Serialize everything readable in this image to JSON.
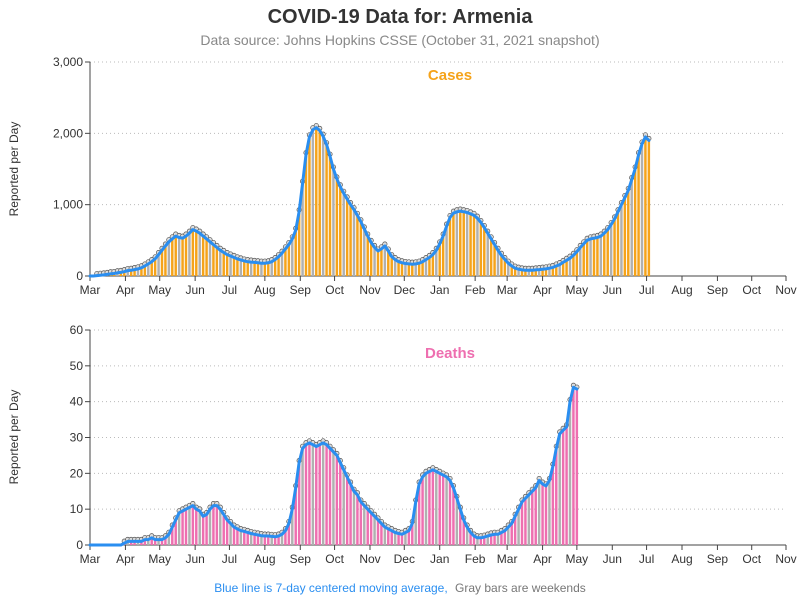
{
  "title": "COVID-19 Data for: Armenia",
  "subtitle": "Data source: Johns Hopkins CSSE (October 31, 2021 snapshot)",
  "footnote": {
    "blue_part": "Blue line is 7-day centered moving average,",
    "gray_part": "Gray bars are weekends"
  },
  "colors": {
    "cases_bar": "#f5a31a",
    "deaths_bar": "#ee6fb0",
    "moving_average": "#2a8ef0",
    "weekend_bar": "#b0b0b0",
    "grid": "#bbbbbb",
    "marker_fill": "#dddddd",
    "marker_stroke": "#555555"
  },
  "chart_data": [
    {
      "type": "bar",
      "title": "Cases",
      "title_color": "#f5a31a",
      "ylabel": "Reported per Day",
      "ylim": [
        0,
        3000
      ],
      "yticks": [
        0,
        1000,
        2000,
        3000
      ],
      "ytick_labels": [
        "0",
        "1,000",
        "2,000",
        "3,000"
      ],
      "xlim": [
        "2020-03-01",
        "2021-10-31"
      ],
      "xtick_labels": [
        "Mar",
        "Apr",
        "May",
        "Jun",
        "Jul",
        "Aug",
        "Sep",
        "Oct",
        "Nov",
        "Dec",
        "Jan",
        "Feb",
        "Mar",
        "Apr",
        "May",
        "Jun",
        "Jul",
        "Aug",
        "Sep",
        "Oct",
        "Nov"
      ],
      "grid": "horizontal dotted",
      "bar_color": "#f5a31a",
      "line_color": "#2a8ef0",
      "series": [
        {
          "name": "Reported per Day",
          "sample_interval_days": 3,
          "start_date": "2020-03-01",
          "values": [
            0,
            0,
            5,
            10,
            15,
            22,
            30,
            35,
            45,
            50,
            60,
            75,
            80,
            90,
            100,
            115,
            140,
            170,
            200,
            240,
            300,
            360,
            420,
            480,
            520,
            560,
            540,
            530,
            560,
            600,
            650,
            630,
            600,
            560,
            520,
            480,
            440,
            400,
            360,
            330,
            300,
            280,
            260,
            240,
            225,
            210,
            200,
            195,
            190,
            185,
            180,
            180,
            185,
            200,
            230,
            270,
            320,
            380,
            440,
            520,
            640,
            900,
            1300,
            1700,
            1950,
            2050,
            2080,
            2040,
            1960,
            1840,
            1680,
            1500,
            1360,
            1250,
            1160,
            1080,
            1000,
            930,
            850,
            760,
            660,
            560,
            470,
            400,
            350,
            380,
            420,
            350,
            270,
            230,
            200,
            185,
            175,
            170,
            165,
            170,
            180,
            200,
            230,
            260,
            300,
            360,
            450,
            560,
            700,
            820,
            880,
            900,
            910,
            900,
            890,
            870,
            850,
            810,
            750,
            680,
            600,
            520,
            440,
            360,
            290,
            230,
            180,
            140,
            110,
            95,
            85,
            80,
            80,
            80,
            85,
            90,
            95,
            100,
            110,
            120,
            140,
            160,
            190,
            220,
            250,
            290,
            340,
            400,
            450,
            500,
            520,
            530,
            540,
            560,
            600,
            650,
            720,
            800,
            900,
            1000,
            1100,
            1200,
            1350,
            1500,
            1700,
            1850,
            1950,
            1900
          ]
        }
      ]
    },
    {
      "type": "bar",
      "title": "Deaths",
      "title_color": "#ee6fb0",
      "ylabel": "Reported per Day",
      "ylim": [
        0,
        60
      ],
      "yticks": [
        0,
        10,
        20,
        30,
        40,
        50,
        60
      ],
      "ytick_labels": [
        "0",
        "10",
        "20",
        "30",
        "40",
        "50",
        "60"
      ],
      "xlim": [
        "2020-03-01",
        "2021-10-31"
      ],
      "xtick_labels": [
        "Mar",
        "Apr",
        "May",
        "Jun",
        "Jul",
        "Aug",
        "Sep",
        "Oct",
        "Nov",
        "Dec",
        "Jan",
        "Feb",
        "Mar",
        "Apr",
        "May",
        "Jun",
        "Jul",
        "Aug",
        "Sep",
        "Oct",
        "Nov"
      ],
      "grid": "horizontal dotted",
      "bar_color": "#ee6fb0",
      "line_color": "#2a8ef0",
      "series": [
        {
          "name": "Reported per Day",
          "sample_interval_days": 3,
          "start_date": "2020-03-01",
          "values": [
            0,
            0,
            0,
            0,
            0,
            0,
            0,
            0,
            0,
            0,
            0.5,
            1,
            1,
            1,
            1,
            1,
            1.5,
            1.5,
            2,
            1.5,
            1.5,
            1.5,
            2,
            3,
            5,
            7,
            9,
            9.5,
            10,
            10.5,
            11,
            10,
            9.5,
            8,
            8.5,
            10,
            11,
            11,
            10,
            8.5,
            7,
            6,
            5,
            4.5,
            4,
            3.8,
            3.5,
            3.2,
            3,
            2.8,
            2.6,
            2.5,
            2.5,
            2.4,
            2.3,
            2.5,
            3,
            4,
            6,
            10,
            16,
            23,
            27,
            28,
            28.5,
            28,
            27.5,
            28,
            28.5,
            28,
            27,
            26,
            25,
            23,
            21,
            19,
            17,
            15,
            14,
            12,
            11,
            10,
            9,
            8,
            7,
            6,
            5,
            4.5,
            4,
            3.5,
            3.2,
            3,
            3.5,
            4,
            6,
            12,
            17,
            19,
            20,
            20.5,
            21,
            20.5,
            20,
            19.5,
            19,
            18,
            16,
            13,
            10,
            7,
            5,
            3.5,
            2.5,
            2,
            2,
            2.2,
            2.5,
            2.8,
            3,
            3,
            3.5,
            4,
            5,
            6,
            8,
            10,
            12,
            13,
            14,
            15,
            16,
            18,
            17,
            16.5,
            18,
            22,
            27,
            31,
            32,
            33,
            40,
            44,
            43.5
          ]
        }
      ]
    }
  ]
}
